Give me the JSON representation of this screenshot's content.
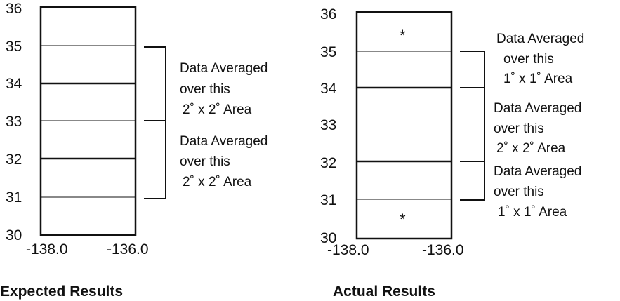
{
  "panels": [
    {
      "id": "expected",
      "caption": "Expected Results",
      "y_ticks": [
        "36",
        "35",
        "34",
        "33",
        "32",
        "31",
        "30"
      ],
      "x_ticks": [
        "-138.0",
        "-136.0"
      ],
      "annotations": [
        {
          "line1": "Data Averaged",
          "line2": "over this",
          "line3": "2˚ x 2˚ Area"
        },
        {
          "line1": "Data Averaged",
          "line2": "over this",
          "line3": "2˚ x 2˚ Area"
        }
      ]
    },
    {
      "id": "actual",
      "caption": "Actual Results",
      "y_ticks": [
        "36",
        "35",
        "34",
        "33",
        "32",
        "31",
        "30"
      ],
      "x_ticks": [
        "-138.0",
        "-136.0"
      ],
      "markers": [
        "*",
        "*"
      ],
      "annotations": [
        {
          "line1": "Data Averaged",
          "line2": "over this",
          "line3": "1˚ x 1˚ Area"
        },
        {
          "line1": "Data Averaged",
          "line2": "over this",
          "line3": "2˚ x 2˚ Area"
        },
        {
          "line1": "Data Averaged",
          "line2": "over this",
          "line3": "1˚ x 1˚ Area"
        }
      ]
    }
  ]
}
